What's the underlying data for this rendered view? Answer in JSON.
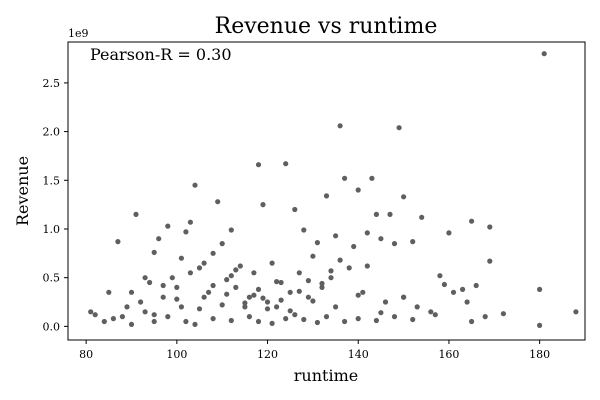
{
  "chart_data": {
    "type": "scatter",
    "title": "Revenue vs runtime",
    "xlabel": "runtime",
    "ylabel": "Revenue",
    "y_offset_label": "1e9",
    "annotation": "Pearson-R = 0.30",
    "xlim": [
      76,
      190
    ],
    "ylim": [
      -0.14,
      2.92
    ],
    "xticks": [
      80,
      100,
      120,
      140,
      160,
      180
    ],
    "yticks": [
      0.0,
      0.5,
      1.0,
      1.5,
      2.0,
      2.5
    ],
    "ytick_labels": [
      "0.0",
      "0.5",
      "1.0",
      "1.5",
      "2.0",
      "2.5"
    ],
    "grid": false,
    "marker_color": "#5f5f5f",
    "series": [
      {
        "x": [
          181,
          136,
          149,
          118,
          124,
          140,
          137,
          143,
          104,
          160,
          169,
          150,
          126,
          119,
          109,
          91,
          98,
          103,
          112,
          165,
          96,
          95,
          102,
          110,
          133,
          144,
          147,
          152,
          154,
          131,
          128,
          135,
          139,
          142,
          145,
          148,
          158,
          159,
          163,
          166,
          169,
          180,
          188,
          172,
          85,
          87,
          89,
          92,
          94,
          97,
          99,
          101,
          105,
          107,
          108,
          111,
          113,
          114,
          116,
          117,
          120,
          121,
          122,
          123,
          125,
          127,
          129,
          130,
          132,
          134,
          138,
          141,
          146,
          150,
          153,
          156,
          161,
          164,
          168,
          100,
          106,
          115,
          93,
          88,
          82,
          81,
          84,
          86,
          90,
          95,
          98,
          102,
          104,
          108,
          112,
          116,
          118,
          121,
          124,
          126,
          128,
          131,
          133,
          137,
          140,
          144,
          148,
          152,
          157,
          165,
          180,
          90,
          100,
          110,
          120,
          130,
          140,
          95,
          105,
          115,
          125,
          135,
          145,
          150,
          108,
          112,
          118,
          122,
          127,
          132,
          103,
          97,
          93,
          113,
          117,
          123,
          136,
          142,
          101,
          106,
          111,
          119,
          129,
          134
        ],
        "y": [
          2.8,
          2.06,
          2.04,
          1.66,
          1.67,
          1.4,
          1.52,
          1.52,
          1.45,
          0.96,
          1.02,
          1.33,
          1.2,
          1.25,
          1.28,
          1.15,
          1.03,
          1.07,
          0.99,
          1.08,
          0.9,
          0.76,
          0.97,
          0.85,
          1.34,
          1.15,
          1.15,
          0.87,
          1.12,
          0.86,
          0.99,
          0.93,
          0.82,
          0.96,
          0.9,
          0.85,
          0.52,
          0.43,
          0.38,
          0.42,
          0.67,
          0.38,
          0.15,
          0.13,
          0.35,
          0.87,
          0.2,
          0.25,
          0.45,
          0.3,
          0.5,
          0.2,
          0.6,
          0.35,
          0.75,
          0.48,
          0.4,
          0.62,
          0.3,
          0.55,
          0.25,
          0.65,
          0.2,
          0.45,
          0.35,
          0.55,
          0.3,
          0.72,
          0.4,
          0.5,
          0.6,
          0.35,
          0.25,
          0.3,
          0.2,
          0.15,
          0.35,
          0.25,
          0.1,
          0.4,
          0.3,
          0.2,
          0.15,
          0.1,
          0.12,
          0.15,
          0.05,
          0.08,
          0.02,
          0.05,
          0.1,
          0.05,
          0.02,
          0.08,
          0.06,
          0.1,
          0.05,
          0.03,
          0.08,
          0.12,
          0.07,
          0.04,
          0.1,
          0.05,
          0.08,
          0.06,
          0.1,
          0.07,
          0.12,
          0.05,
          0.01,
          0.35,
          0.28,
          0.22,
          0.18,
          0.26,
          0.32,
          0.12,
          0.18,
          0.24,
          0.16,
          0.2,
          0.14,
          0.3,
          0.42,
          0.52,
          0.38,
          0.46,
          0.36,
          0.44,
          0.55,
          0.42,
          0.5,
          0.58,
          0.32,
          0.27,
          0.68,
          0.62,
          0.7,
          0.65,
          0.33,
          0.29,
          0.47,
          0.57
        ]
      }
    ]
  }
}
